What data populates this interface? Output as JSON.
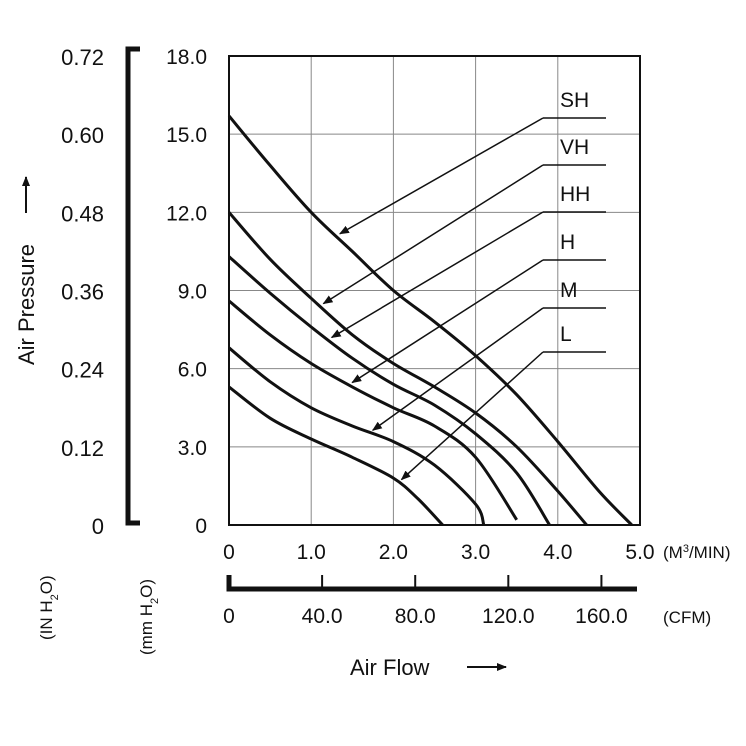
{
  "chart_data": {
    "type": "line",
    "title": "",
    "xlabel": "Air Flow",
    "ylabel": "Air Pressure",
    "x_unit_primary": "(M3/MIN)",
    "x_unit_secondary": "(CFM)",
    "y_unit_primary": "(mm H2O)",
    "y_unit_secondary": "(IN H2O)",
    "xlim": [
      0,
      5.0
    ],
    "ylim": [
      0,
      18.0
    ],
    "grid": true,
    "x_ticks": [
      "0",
      "1.0",
      "2.0",
      "3.0",
      "4.0",
      "5.0"
    ],
    "x_ticks_cfm": [
      "0",
      "40.0",
      "80.0",
      "120.0",
      "160.0"
    ],
    "y_ticks": [
      "0",
      "3.0",
      "6.0",
      "9.0",
      "12.0",
      "15.0",
      "18.0"
    ],
    "y_ticks_in": [
      "0",
      "0.12",
      "0.24",
      "0.36",
      "0.48",
      "0.60",
      "0.72"
    ],
    "series": [
      {
        "name": "SH",
        "x": [
          0,
          0.5,
          1.0,
          1.5,
          2.0,
          2.5,
          3.0,
          3.5,
          4.0,
          4.5,
          4.9
        ],
        "y": [
          15.7,
          13.8,
          12.0,
          10.5,
          9.0,
          7.8,
          6.5,
          5.0,
          3.2,
          1.3,
          0
        ]
      },
      {
        "name": "VH",
        "x": [
          0,
          0.5,
          1.0,
          1.5,
          2.0,
          2.5,
          3.0,
          3.5,
          4.0,
          4.35
        ],
        "y": [
          12.0,
          10.2,
          8.7,
          7.3,
          6.2,
          5.3,
          4.3,
          3.0,
          1.3,
          0
        ]
      },
      {
        "name": "HH",
        "x": [
          0,
          0.5,
          1.0,
          1.5,
          2.0,
          2.5,
          3.0,
          3.5,
          3.9
        ],
        "y": [
          10.3,
          8.9,
          7.6,
          6.4,
          5.4,
          4.6,
          3.5,
          2.0,
          0
        ]
      },
      {
        "name": "H",
        "x": [
          0,
          0.5,
          1.0,
          1.5,
          2.0,
          2.5,
          3.0,
          3.5
        ],
        "y": [
          8.6,
          7.3,
          6.2,
          5.3,
          4.5,
          3.8,
          2.6,
          0.2
        ]
      },
      {
        "name": "M",
        "x": [
          0,
          0.5,
          1.0,
          1.5,
          2.0,
          2.5,
          3.0,
          3.1
        ],
        "y": [
          6.8,
          5.5,
          4.5,
          3.8,
          3.2,
          2.3,
          0.8,
          0
        ]
      },
      {
        "name": "L",
        "x": [
          0,
          0.5,
          1.0,
          1.5,
          2.0,
          2.3,
          2.6
        ],
        "y": [
          5.3,
          4.1,
          3.3,
          2.6,
          1.8,
          1.0,
          0
        ]
      }
    ]
  }
}
